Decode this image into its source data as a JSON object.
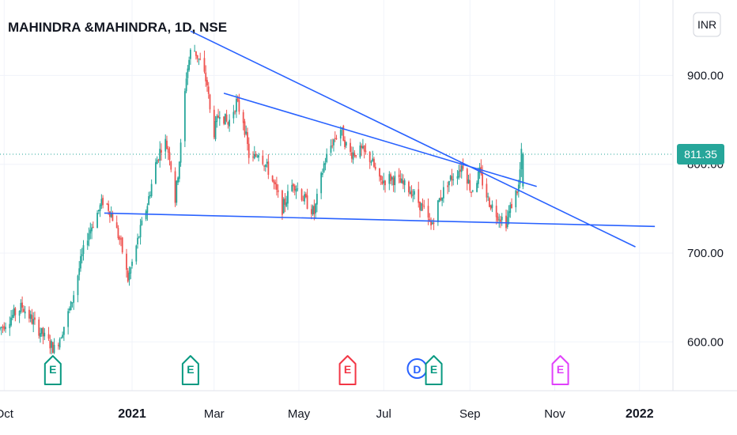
{
  "chart_data": {
    "type": "candlestick",
    "title": "MAHINDRA &MAHINDRA, 1D, NSE",
    "currency_label": "INR",
    "last_price_label": "811.35",
    "last_price": 811.35,
    "ylim": [
      545,
      985
    ],
    "y_ticks": [
      {
        "value": 600,
        "label": "600.00"
      },
      {
        "value": 700,
        "label": "700.00"
      },
      {
        "value": 800,
        "label": "800.00"
      },
      {
        "value": 900,
        "label": "900.00"
      }
    ],
    "x_range": [
      "2020-09-28",
      "2022-01-25"
    ],
    "x_ticks": [
      {
        "date": "2020-10-01",
        "label": "Oct",
        "bold": false
      },
      {
        "date": "2021-01-01",
        "label": "2021",
        "bold": true
      },
      {
        "date": "2021-03-01",
        "label": "Mar",
        "bold": false
      },
      {
        "date": "2021-05-01",
        "label": "May",
        "bold": false
      },
      {
        "date": "2021-07-01",
        "label": "Jul",
        "bold": false
      },
      {
        "date": "2021-09-01",
        "label": "Sep",
        "bold": false
      },
      {
        "date": "2021-11-01",
        "label": "Nov",
        "bold": false
      },
      {
        "date": "2022-01-01",
        "label": "2022",
        "bold": true
      }
    ],
    "price_path": [
      [
        "2020-09-28",
        615
      ],
      [
        "2020-10-06",
        628
      ],
      [
        "2020-10-14",
        640
      ],
      [
        "2020-10-22",
        622
      ],
      [
        "2020-10-30",
        605
      ],
      [
        "2020-11-06",
        592
      ],
      [
        "2020-11-10",
        605
      ],
      [
        "2020-11-18",
        640
      ],
      [
        "2020-11-25",
        690
      ],
      [
        "2020-11-30",
        720
      ],
      [
        "2020-12-07",
        745
      ],
      [
        "2020-12-12",
        762
      ],
      [
        "2020-12-18",
        740
      ],
      [
        "2020-12-24",
        710
      ],
      [
        "2020-12-29",
        670
      ],
      [
        "2021-01-06",
        720
      ],
      [
        "2021-01-12",
        755
      ],
      [
        "2021-01-18",
        800
      ],
      [
        "2021-01-24",
        830
      ],
      [
        "2021-01-28",
        810
      ],
      [
        "2021-02-01",
        760
      ],
      [
        "2021-02-05",
        820
      ],
      [
        "2021-02-09",
        900
      ],
      [
        "2021-02-13",
        935
      ],
      [
        "2021-02-19",
        915
      ],
      [
        "2021-02-24",
        890
      ],
      [
        "2021-02-28",
        830
      ],
      [
        "2021-03-05",
        860
      ],
      [
        "2021-03-11",
        845
      ],
      [
        "2021-03-17",
        870
      ],
      [
        "2021-03-22",
        850
      ],
      [
        "2021-03-27",
        800
      ],
      [
        "2021-04-02",
        815
      ],
      [
        "2021-04-10",
        790
      ],
      [
        "2021-04-19",
        750
      ],
      [
        "2021-04-27",
        780
      ],
      [
        "2021-05-05",
        760
      ],
      [
        "2021-05-12",
        745
      ],
      [
        "2021-05-19",
        800
      ],
      [
        "2021-05-25",
        825
      ],
      [
        "2021-05-31",
        840
      ],
      [
        "2021-06-06",
        812
      ],
      [
        "2021-06-15",
        815
      ],
      [
        "2021-06-22",
        805
      ],
      [
        "2021-06-28",
        780
      ],
      [
        "2021-07-06",
        785
      ],
      [
        "2021-07-12",
        780
      ],
      [
        "2021-07-21",
        770
      ],
      [
        "2021-07-29",
        750
      ],
      [
        "2021-08-04",
        730
      ],
      [
        "2021-08-10",
        760
      ],
      [
        "2021-08-16",
        780
      ],
      [
        "2021-08-22",
        790
      ],
      [
        "2021-08-27",
        800
      ],
      [
        "2021-09-02",
        770
      ],
      [
        "2021-09-08",
        790
      ],
      [
        "2021-09-14",
        760
      ],
      [
        "2021-09-20",
        745
      ],
      [
        "2021-09-27",
        735
      ],
      [
        "2021-10-02",
        760
      ],
      [
        "2021-10-06",
        775
      ],
      [
        "2021-10-08",
        811.35
      ]
    ],
    "trend_lines": [
      {
        "name": "upper-resistance-line",
        "points": [
          [
            "2021-02-12",
            950
          ],
          [
            "2021-12-29",
            707
          ]
        ]
      },
      {
        "name": "inner-resistance-line",
        "points": [
          [
            "2021-03-08",
            880
          ],
          [
            "2021-10-19",
            775
          ]
        ]
      },
      {
        "name": "support-line",
        "points": [
          [
            "2020-12-12",
            745
          ],
          [
            "2022-01-12",
            730
          ]
        ]
      }
    ],
    "events": [
      {
        "date": "2020-11-05",
        "label": "E",
        "color": "#089981",
        "shape": "pentagon"
      },
      {
        "date": "2021-02-12",
        "label": "E",
        "color": "#089981",
        "shape": "pentagon"
      },
      {
        "date": "2021-06-05",
        "label": "E",
        "color": "#f23645",
        "shape": "pentagon"
      },
      {
        "date": "2021-07-25",
        "label": "D",
        "color": "#2962ff",
        "shape": "circle"
      },
      {
        "date": "2021-08-06",
        "label": "E",
        "color": "#089981",
        "shape": "pentagon"
      },
      {
        "date": "2021-11-05",
        "label": "E",
        "color": "#e040fb",
        "shape": "pentagon"
      }
    ],
    "colors": {
      "up": "#26a69a",
      "down": "#ef5350",
      "trend": "#2962ff",
      "grid": "#f0f3fa",
      "price_badge": "#26a69a",
      "price_line": "#26a69a"
    }
  }
}
